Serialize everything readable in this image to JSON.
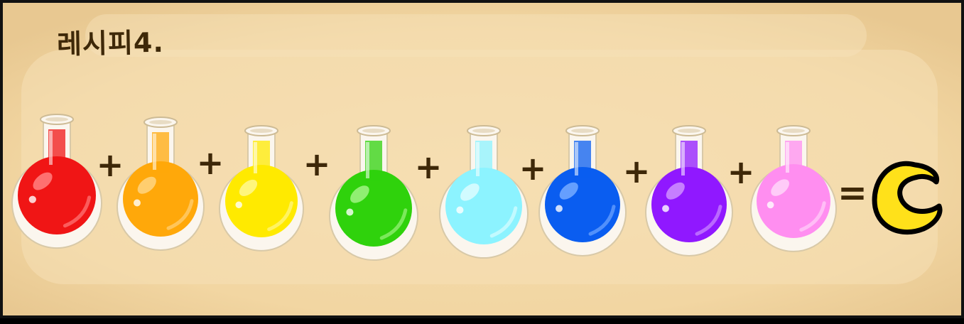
{
  "title": "레시피4.",
  "potions": [
    {
      "color": "#f01515",
      "light": "#ff7a7a"
    },
    {
      "color": "#ffa80a",
      "light": "#ffd27a"
    },
    {
      "color": "#ffea00",
      "light": "#fff78a"
    },
    {
      "color": "#2fd20c",
      "light": "#9bf27d"
    },
    {
      "color": "#8cf3ff",
      "light": "#d8fcff"
    },
    {
      "color": "#0a5df0",
      "light": "#6fa6ff"
    },
    {
      "color": "#9018ff",
      "light": "#cc8aff"
    },
    {
      "color": "#ff8ef0",
      "light": "#ffd2f8"
    }
  ],
  "operators": {
    "plus": "+",
    "equals": "="
  },
  "result": {
    "name": "crescent-moon",
    "fill": "#ffe11a",
    "outline": "#000000"
  }
}
